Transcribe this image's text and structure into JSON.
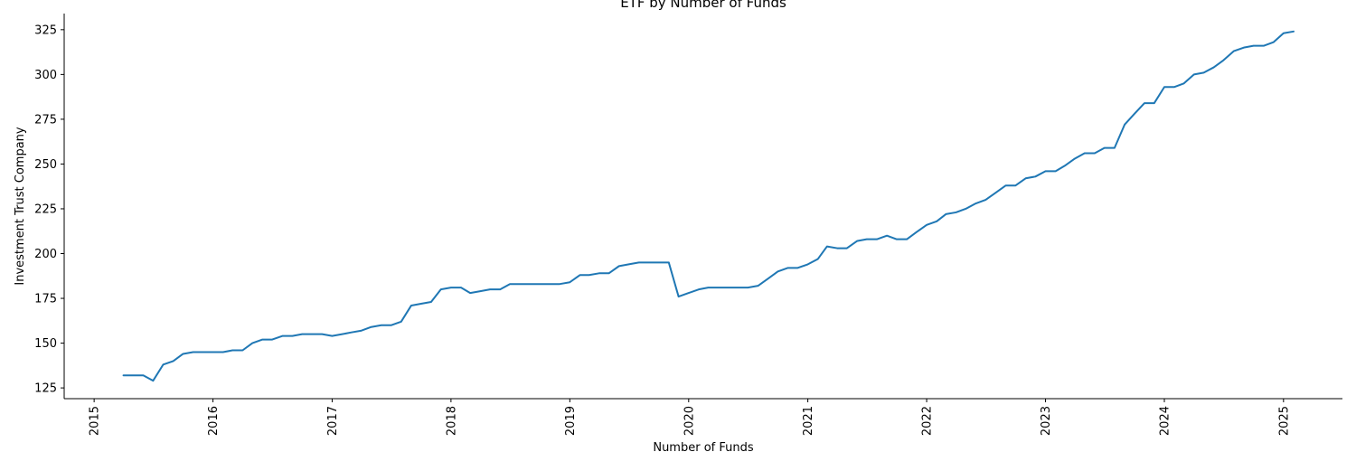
{
  "chart_data": {
    "type": "line",
    "title": "ETF by Number of Funds",
    "xlabel": "Number of Funds",
    "ylabel": "Investment Trust Company",
    "x_ticks": [
      "2015",
      "2016",
      "2017",
      "2018",
      "2019",
      "2020",
      "2021",
      "2022",
      "2023",
      "2024",
      "2025"
    ],
    "y_ticks": [
      "125",
      "150",
      "175",
      "200",
      "225",
      "250",
      "275",
      "300",
      "325"
    ],
    "xlim": [
      "2014-10-01",
      "2025-07-01"
    ],
    "ylim": [
      119,
      334
    ],
    "grid": false,
    "legend": "none",
    "series": [
      {
        "color": "#1f77b4",
        "x": [
          "2015-04",
          "2015-05",
          "2015-06",
          "2015-07",
          "2015-08",
          "2015-09",
          "2015-10",
          "2015-11",
          "2015-12",
          "2016-01",
          "2016-02",
          "2016-03",
          "2016-04",
          "2016-05",
          "2016-06",
          "2016-07",
          "2016-08",
          "2016-09",
          "2016-10",
          "2016-11",
          "2016-12",
          "2017-01",
          "2017-02",
          "2017-03",
          "2017-04",
          "2017-05",
          "2017-06",
          "2017-07",
          "2017-08",
          "2017-09",
          "2017-10",
          "2017-11",
          "2017-12",
          "2018-01",
          "2018-02",
          "2018-03",
          "2018-04",
          "2018-05",
          "2018-06",
          "2018-07",
          "2018-08",
          "2018-09",
          "2018-10",
          "2018-11",
          "2018-12",
          "2019-01",
          "2019-02",
          "2019-03",
          "2019-04",
          "2019-05",
          "2019-06",
          "2019-07",
          "2019-08",
          "2019-09",
          "2019-10",
          "2019-11",
          "2019-12",
          "2020-01",
          "2020-02",
          "2020-03",
          "2020-04",
          "2020-05",
          "2020-06",
          "2020-07",
          "2020-08",
          "2020-09",
          "2020-10",
          "2020-11",
          "2020-12",
          "2021-01",
          "2021-02",
          "2021-03",
          "2021-04",
          "2021-05",
          "2021-06",
          "2021-07",
          "2021-08",
          "2021-09",
          "2021-10",
          "2021-11",
          "2021-12",
          "2022-01",
          "2022-02",
          "2022-03",
          "2022-04",
          "2022-05",
          "2022-06",
          "2022-07",
          "2022-08",
          "2022-09",
          "2022-10",
          "2022-11",
          "2022-12",
          "2023-01",
          "2023-02",
          "2023-03",
          "2023-04",
          "2023-05",
          "2023-06",
          "2023-07",
          "2023-08",
          "2023-09",
          "2023-10",
          "2023-11",
          "2023-12",
          "2024-01",
          "2024-02",
          "2024-03",
          "2024-04",
          "2024-05",
          "2024-06",
          "2024-07",
          "2024-08",
          "2024-09",
          "2024-10",
          "2024-11",
          "2024-12",
          "2025-01",
          "2025-02"
        ],
        "y": [
          132,
          132,
          132,
          129,
          138,
          140,
          144,
          145,
          145,
          145,
          145,
          146,
          146,
          150,
          152,
          152,
          154,
          154,
          155,
          155,
          155,
          154,
          155,
          156,
          157,
          159,
          160,
          160,
          162,
          171,
          172,
          173,
          180,
          181,
          181,
          178,
          179,
          180,
          180,
          183,
          183,
          183,
          183,
          183,
          183,
          184,
          188,
          188,
          189,
          189,
          193,
          194,
          195,
          195,
          195,
          195,
          176,
          178,
          180,
          181,
          181,
          181,
          181,
          181,
          182,
          186,
          190,
          192,
          192,
          194,
          197,
          204,
          203,
          203,
          207,
          208,
          208,
          210,
          208,
          208,
          212,
          216,
          218,
          222,
          223,
          225,
          228,
          230,
          234,
          238,
          238,
          242,
          243,
          246,
          246,
          249,
          253,
          256,
          256,
          259,
          259,
          272,
          278,
          284,
          284,
          293,
          293,
          295,
          300,
          301,
          304,
          308,
          313,
          315,
          316,
          316,
          318,
          323,
          324
        ]
      }
    ]
  }
}
